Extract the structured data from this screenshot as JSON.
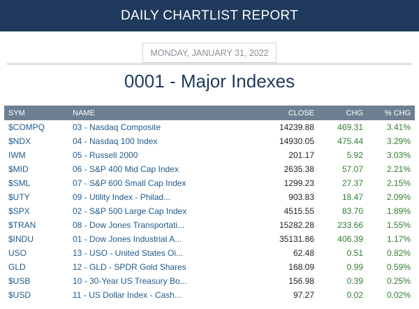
{
  "header": {
    "title": "DAILY CHARTLIST REPORT"
  },
  "report": {
    "date": "MONDAY, JANUARY 31, 2022",
    "title": "0001 - Major Indexes"
  },
  "colors": {
    "header_bg": "#1f3a5c",
    "table_header_bg": "#6e7f92",
    "positive": "#2e7d32",
    "link": "#1f5a8a"
  },
  "table": {
    "columns": [
      "SYM",
      "NAME",
      "CLOSE",
      "CHG",
      "% CHG"
    ],
    "rows": [
      {
        "sym": "$COMPQ",
        "name": "03 - Nasdaq Composite",
        "close": "14239.88",
        "chg": "469.31",
        "pct": "3.41%"
      },
      {
        "sym": "$NDX",
        "name": "04 - Nasdaq 100 Index",
        "close": "14930.05",
        "chg": "475.44",
        "pct": "3.29%"
      },
      {
        "sym": "IWM",
        "name": "05 - Russell 2000",
        "close": "201.17",
        "chg": "5.92",
        "pct": "3.03%"
      },
      {
        "sym": "$MID",
        "name": "06 - S&P 400 Mid Cap Index",
        "close": "2635.38",
        "chg": "57.07",
        "pct": "2.21%"
      },
      {
        "sym": "$SML",
        "name": "07 - S&P 600 Small Cap Index",
        "close": "1299.23",
        "chg": "27.37",
        "pct": "2.15%"
      },
      {
        "sym": "$UTY",
        "name": "09 - Utility Index - Philad...",
        "close": "903.83",
        "chg": "18.47",
        "pct": "2.09%"
      },
      {
        "sym": "$SPX",
        "name": "02 - S&P 500 Large Cap Index",
        "close": "4515.55",
        "chg": "83.70",
        "pct": "1.89%"
      },
      {
        "sym": "$TRAN",
        "name": "08 - Dow Jones Transportati...",
        "close": "15282.28",
        "chg": "233.66",
        "pct": "1.55%"
      },
      {
        "sym": "$INDU",
        "name": "01 - Dow Jones Industrial A...",
        "close": "35131.86",
        "chg": "406.39",
        "pct": "1.17%"
      },
      {
        "sym": "USO",
        "name": "13 - USO - United States Oi...",
        "close": "62.48",
        "chg": "0.51",
        "pct": "0.82%"
      },
      {
        "sym": "GLD",
        "name": "12 - GLD - SPDR Gold Shares",
        "close": "168.09",
        "chg": "0.99",
        "pct": "0.59%"
      },
      {
        "sym": "$USB",
        "name": "10 - 30-Year US Treasury Bo...",
        "close": "156.98",
        "chg": "0.39",
        "pct": "0.25%"
      },
      {
        "sym": "$USD",
        "name": "11 - US Dollar Index - Cash...",
        "close": "97.27",
        "chg": "0.02",
        "pct": "0.02%"
      }
    ]
  }
}
